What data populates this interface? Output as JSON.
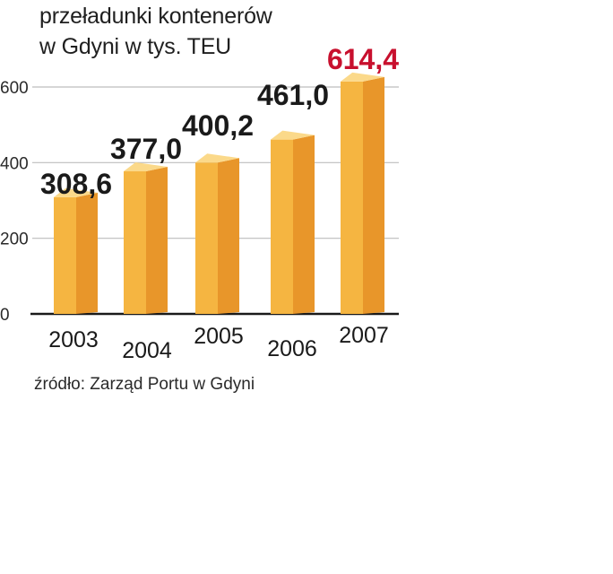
{
  "title_lines": [
    "przeładunki kontenerów",
    "w Gdyni w  tys. TEU"
  ],
  "source": "źródło: Zarząd Portu w  Gdyni",
  "colors": {
    "bar_front": "#f5b541",
    "bar_side": "#e8962a",
    "bar_top": "#fbd98a",
    "highlight_label": "#c8102e",
    "label": "#1a1a1a",
    "grid": "#bdbdbd",
    "axis": "#1a1a1a"
  },
  "chart_data": {
    "type": "bar",
    "title": "przeładunki kontenerów w Gdyni w  tys. TEU",
    "categories": [
      "2003",
      "2004",
      "2005",
      "2006",
      "2007"
    ],
    "values": [
      308.6,
      377.0,
      400.2,
      461.0,
      614.4
    ],
    "value_labels": [
      "308,6",
      "377,0",
      "400,2",
      "461,0",
      "614,4"
    ],
    "highlight_index": 4,
    "yticks": [
      0,
      200,
      400,
      600
    ],
    "ytick_labels": [
      "0",
      "200",
      "400",
      "600"
    ],
    "ylim": [
      0,
      614.4
    ],
    "grid": true,
    "xlabel": "",
    "ylabel": ""
  }
}
